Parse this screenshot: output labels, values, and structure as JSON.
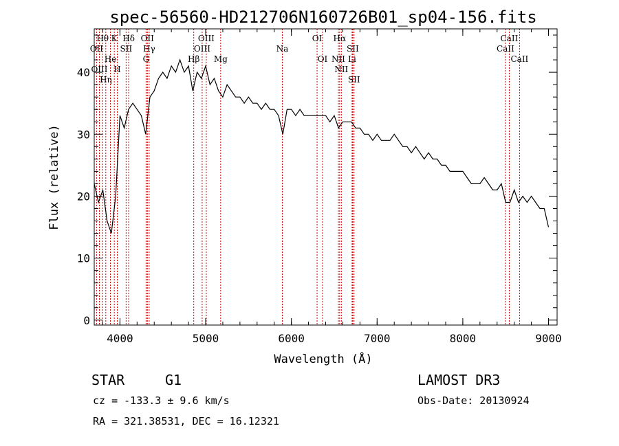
{
  "chart_data": {
    "type": "line",
    "title": "spec-56560-HD212706N160726B01_sp04-156.fits",
    "xlabel": "Wavelength (Å)",
    "ylabel": "Flux (relative)",
    "xlim": [
      3700,
      9100
    ],
    "ylim": [
      -0.8,
      47
    ],
    "xticks": [
      4000,
      5000,
      6000,
      7000,
      8000,
      9000
    ],
    "yticks": [
      0,
      10,
      20,
      30,
      40
    ],
    "x_start": 3700,
    "x_step": 50,
    "values": [
      22,
      19,
      21,
      16,
      14,
      20,
      33,
      31,
      34,
      35,
      34,
      33,
      30,
      36,
      37,
      39,
      40,
      39,
      41,
      40,
      42,
      40,
      41,
      37,
      40,
      39,
      41,
      38,
      39,
      37,
      36,
      38,
      37,
      36,
      36,
      35,
      36,
      35,
      35,
      34,
      35,
      34,
      34,
      33,
      30,
      34,
      34,
      33,
      34,
      33,
      33,
      33,
      33,
      33,
      33,
      32,
      33,
      31,
      32,
      32,
      32,
      31,
      31,
      30,
      30,
      29,
      30,
      29,
      29,
      29,
      30,
      29,
      28,
      28,
      27,
      28,
      27,
      26,
      27,
      26,
      26,
      25,
      25,
      24,
      24,
      24,
      24,
      23,
      22,
      22,
      22,
      23,
      22,
      21,
      21,
      22,
      19,
      19,
      21,
      19,
      20,
      19,
      20,
      19,
      18,
      18,
      15
    ],
    "lines": [
      {
        "name": "OII",
        "wl": 3727,
        "row": 2
      },
      {
        "name": "Hθ",
        "wl": 3798,
        "row": 1
      },
      {
        "name": "OIII",
        "wl": 3760,
        "row": 3
      },
      {
        "name": "Hη",
        "wl": 3835,
        "row": 3
      },
      {
        "name": "He",
        "wl": 3889,
        "row": 2
      },
      {
        "name": "K",
        "wl": 3934,
        "row": 1
      },
      {
        "name": "H",
        "wl": 3969,
        "row": 3
      },
      {
        "name": "SII",
        "wl": 4072,
        "row": 2
      },
      {
        "name": "Hδ",
        "wl": 4102,
        "row": 1
      },
      {
        "name": "G",
        "wl": 4305,
        "row": 3
      },
      {
        "name": "OII",
        "wl": 4320,
        "row": 1
      },
      {
        "name": "Hγ",
        "wl": 4341,
        "row": 2
      },
      {
        "name": "Hβ",
        "wl": 4861,
        "row": 3
      },
      {
        "name": "OIII",
        "wl": 4959,
        "row": 2
      },
      {
        "name": "OIII",
        "wl": 5007,
        "row": 1
      },
      {
        "name": "Mg",
        "wl": 5175,
        "row": 3
      },
      {
        "name": "Na",
        "wl": 5894,
        "row": 2
      },
      {
        "name": "OI",
        "wl": 6300,
        "row": 1
      },
      {
        "name": "OI",
        "wl": 6364,
        "row": 3
      },
      {
        "name": "NII",
        "wl": 6548,
        "row": 2
      },
      {
        "name": "Hα",
        "wl": 6563,
        "row": 1
      },
      {
        "name": "NII",
        "wl": 6583,
        "row": 3
      },
      {
        "name": "Li",
        "wl": 6708,
        "row": 2
      },
      {
        "name": "SII",
        "wl": 6716,
        "row": 1
      },
      {
        "name": "SII",
        "wl": 6731,
        "row": 3
      },
      {
        "name": "CaII",
        "wl": 8498,
        "row": 2
      },
      {
        "name": "CaII",
        "wl": 8542,
        "row": 1
      },
      {
        "name": "CaII",
        "wl": 8662,
        "row": 3
      }
    ],
    "line_color": "#cc0000"
  },
  "footer": {
    "class": "STAR",
    "subclass": "G1",
    "cz": "cz = -133.3 ± 9.6 km/s",
    "radec": "RA = 321.38531, DEC =  16.12321",
    "survey": "LAMOST DR3",
    "obsdate": "Obs-Date: 20130924"
  }
}
